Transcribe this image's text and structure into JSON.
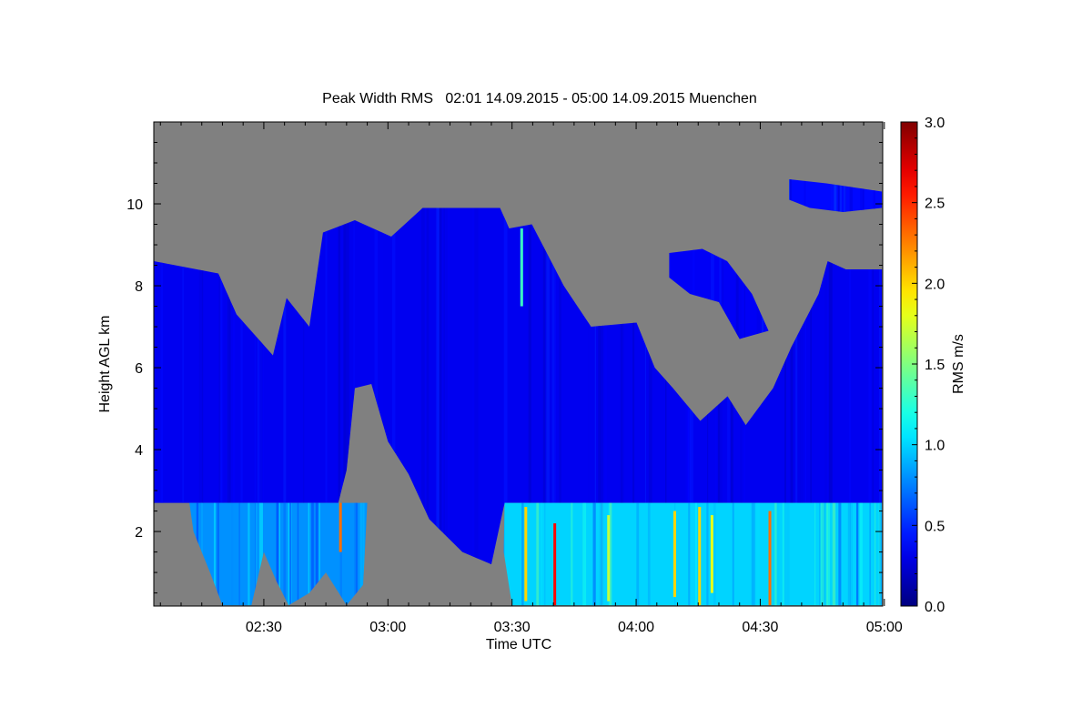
{
  "chart_data": {
    "type": "heatmap",
    "title": "Peak Width RMS   02:01 14.09.2015 - 05:00 14.09.2015 Muenchen",
    "xlabel": "Time UTC",
    "ylabel": "Height AGL km",
    "x_units": "minutes since 02:00 UTC",
    "xlim": [
      3.4,
      179.6
    ],
    "ylim": [
      0.18,
      12.0
    ],
    "x_ticks": [
      {
        "v": 30,
        "label": "02:30"
      },
      {
        "v": 60,
        "label": "03:00"
      },
      {
        "v": 90,
        "label": "03:30"
      },
      {
        "v": 120,
        "label": "04:00"
      },
      {
        "v": 150,
        "label": "04:30"
      },
      {
        "v": 180,
        "label": "05:00"
      }
    ],
    "y_ticks": [
      {
        "v": 2,
        "label": "2"
      },
      {
        "v": 4,
        "label": "4"
      },
      {
        "v": 6,
        "label": "6"
      },
      {
        "v": 8,
        "label": "8"
      },
      {
        "v": 10,
        "label": "10"
      }
    ],
    "colorbar": {
      "label": "RMS m/s",
      "range": [
        0.0,
        3.0
      ],
      "colormap": "jet",
      "ticks": [
        "0.0",
        "0.5",
        "1.0",
        "1.5",
        "2.0",
        "2.5",
        "3.0"
      ]
    },
    "missing_color": "#808080",
    "regions": [
      {
        "name": "upper-cloud",
        "value": 0.33,
        "points": [
          [
            3.4,
            8.6
          ],
          [
            19,
            8.3
          ],
          [
            23.4,
            7.3
          ],
          [
            32.2,
            6.3
          ],
          [
            35.5,
            7.7
          ],
          [
            41,
            7.0
          ],
          [
            44.3,
            9.3
          ],
          [
            52,
            9.6
          ],
          [
            60.8,
            9.2
          ],
          [
            68.4,
            9.9
          ],
          [
            87.1,
            9.9
          ],
          [
            89.3,
            9.4
          ],
          [
            94.8,
            9.5
          ],
          [
            102.5,
            8.0
          ],
          [
            109.1,
            7.0
          ],
          [
            120.1,
            7.1
          ],
          [
            124.5,
            6.0
          ],
          [
            128.9,
            5.5
          ],
          [
            135.5,
            4.7
          ],
          [
            142.1,
            5.3
          ],
          [
            146.5,
            4.6
          ],
          [
            153.1,
            5.5
          ],
          [
            157.5,
            6.5
          ],
          [
            164.1,
            7.8
          ],
          [
            166.3,
            8.6
          ],
          [
            170.7,
            8.4
          ],
          [
            179.4,
            8.4
          ],
          [
            179.4,
            2.7
          ],
          [
            88.2,
            2.7
          ],
          [
            85,
            1.2
          ],
          [
            78,
            1.5
          ],
          [
            70,
            2.3
          ],
          [
            65,
            3.4
          ],
          [
            60,
            4.2
          ],
          [
            56,
            5.6
          ],
          [
            52,
            5.5
          ],
          [
            50,
            3.5
          ],
          [
            48,
            2.7
          ],
          [
            3.4,
            2.7
          ]
        ]
      },
      {
        "name": "separate-cloud",
        "value": 0.35,
        "points": [
          [
            128,
            8.8
          ],
          [
            136,
            8.9
          ],
          [
            142,
            8.6
          ],
          [
            148,
            7.8
          ],
          [
            152,
            6.9
          ],
          [
            145,
            6.7
          ],
          [
            140,
            7.6
          ],
          [
            133,
            7.8
          ],
          [
            128,
            8.2
          ]
        ]
      },
      {
        "name": "high-cloud",
        "value": 0.4,
        "points": [
          [
            157,
            10.6
          ],
          [
            166,
            10.5
          ],
          [
            179.4,
            10.3
          ],
          [
            179.4,
            9.9
          ],
          [
            170,
            9.8
          ],
          [
            162,
            9.9
          ],
          [
            157,
            10.1
          ]
        ]
      },
      {
        "name": "boundary-layer-left",
        "value": 0.8,
        "points": [
          [
            12,
            2.7
          ],
          [
            55,
            2.7
          ],
          [
            54,
            0.7
          ],
          [
            50,
            0.2
          ],
          [
            45,
            1.0
          ],
          [
            41,
            0.5
          ],
          [
            36,
            0.2
          ],
          [
            33,
            0.8
          ],
          [
            30,
            1.5
          ],
          [
            27,
            0.2
          ],
          [
            20,
            0.2
          ],
          [
            17,
            1.0
          ],
          [
            13,
            2.0
          ]
        ]
      },
      {
        "name": "boundary-layer-right",
        "value": 1.0,
        "points": [
          [
            88.2,
            2.7
          ],
          [
            179.4,
            2.7
          ],
          [
            179.4,
            0.2
          ],
          [
            90,
            0.2
          ],
          [
            88,
            1.5
          ]
        ]
      }
    ],
    "streaks": [
      {
        "t": 48.2,
        "h0": 1.5,
        "h1": 2.7,
        "value": 2.3
      },
      {
        "t": 93,
        "h0": 0.3,
        "h1": 2.6,
        "value": 2.0
      },
      {
        "t": 100,
        "h0": 0.2,
        "h1": 2.2,
        "value": 2.6
      },
      {
        "t": 113,
        "h0": 0.3,
        "h1": 2.4,
        "value": 1.7
      },
      {
        "t": 129,
        "h0": 0.4,
        "h1": 2.5,
        "value": 2.0
      },
      {
        "t": 135,
        "h0": 0.2,
        "h1": 2.6,
        "value": 2.0
      },
      {
        "t": 138,
        "h0": 0.5,
        "h1": 2.4,
        "value": 1.8
      },
      {
        "t": 152,
        "h0": 0.2,
        "h1": 2.5,
        "value": 2.3
      },
      {
        "t": 92,
        "h0": 7.5,
        "h1": 9.4,
        "value": 1.3
      }
    ]
  }
}
